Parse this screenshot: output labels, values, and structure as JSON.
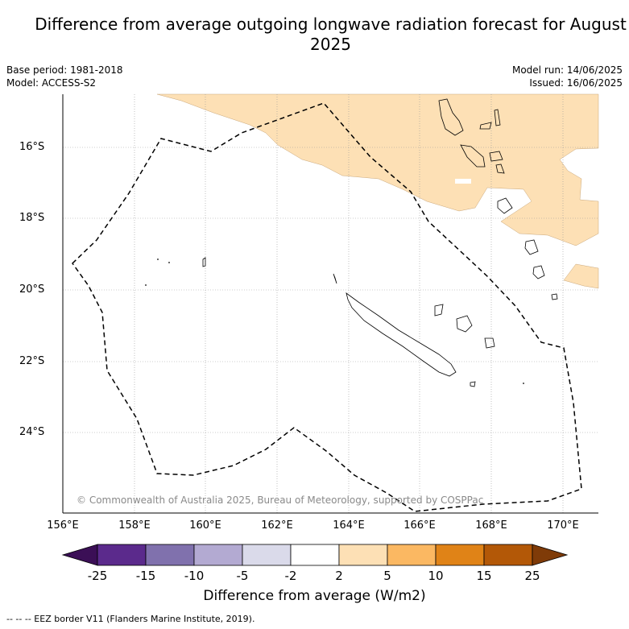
{
  "title": "Difference from average outgoing longwave radiation forecast for August 2025",
  "meta": {
    "base_period": "Base period: 1981-2018",
    "model": "Model: ACCESS-S2",
    "model_run": "Model run: 14/06/2025",
    "issued": "Issued: 16/06/2025"
  },
  "axes": {
    "lat_labels": [
      "16°S",
      "18°S",
      "20°S",
      "22°S",
      "24°S"
    ],
    "lon_labels": [
      "156°E",
      "158°E",
      "160°E",
      "162°E",
      "164°E",
      "166°E",
      "168°E",
      "170°E"
    ]
  },
  "credit": "© Commonwealth of Australia 2025, Bureau of Meteorology, supported by COSPPac",
  "colorbar": {
    "ticks": [
      "-25",
      "-15",
      "-10",
      "-5",
      "-2",
      "2",
      "5",
      "10",
      "15",
      "25"
    ],
    "colors": [
      "#3b0f56",
      "#5b2a8c",
      "#8071ad",
      "#b3aad2",
      "#dadaea",
      "#ffffff",
      "#fde0b5",
      "#fbb862",
      "#e08317",
      "#b35807",
      "#7f3b08"
    ],
    "label": "Difference from average (W/m2)"
  },
  "footnote": "--  --  -- EEZ border V11 (Flanders Marine Institute, 2019).",
  "colors": {
    "anomaly_fill": "#fde0b5"
  }
}
